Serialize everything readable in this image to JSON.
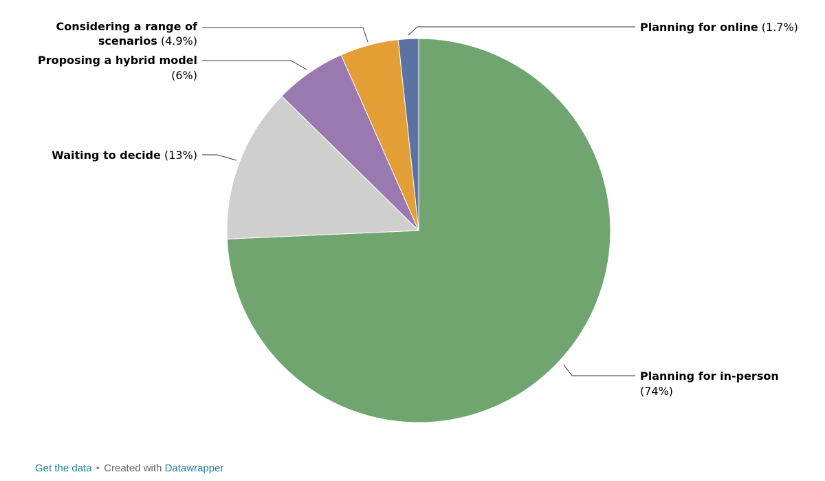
{
  "chart_data": {
    "type": "pie",
    "slices": [
      {
        "label": "Planning for in-person",
        "value": 74,
        "display": "(74%)",
        "color": "#70a570"
      },
      {
        "label": "Waiting to decide",
        "value": 13,
        "display": "(13%)",
        "color": "#cfcfcf"
      },
      {
        "label": "Proposing a hybrid model",
        "value": 6,
        "display": "(6%)",
        "color": "#9a78b0"
      },
      {
        "label": "Considering a range of scenarios",
        "value": 4.9,
        "display": "(4.9%)",
        "color": "#e39e35"
      },
      {
        "label": "Planning for online",
        "value": 1.7,
        "display": "(1.7%)",
        "color": "#5a73a3"
      }
    ],
    "start_angle_deg": 0,
    "direction": "clockwise-from-top",
    "legend": "none"
  },
  "footer": {
    "get_data": "Get the data",
    "separator": "•",
    "created_with": "Created with",
    "datawrapper": "Datawrapper"
  }
}
